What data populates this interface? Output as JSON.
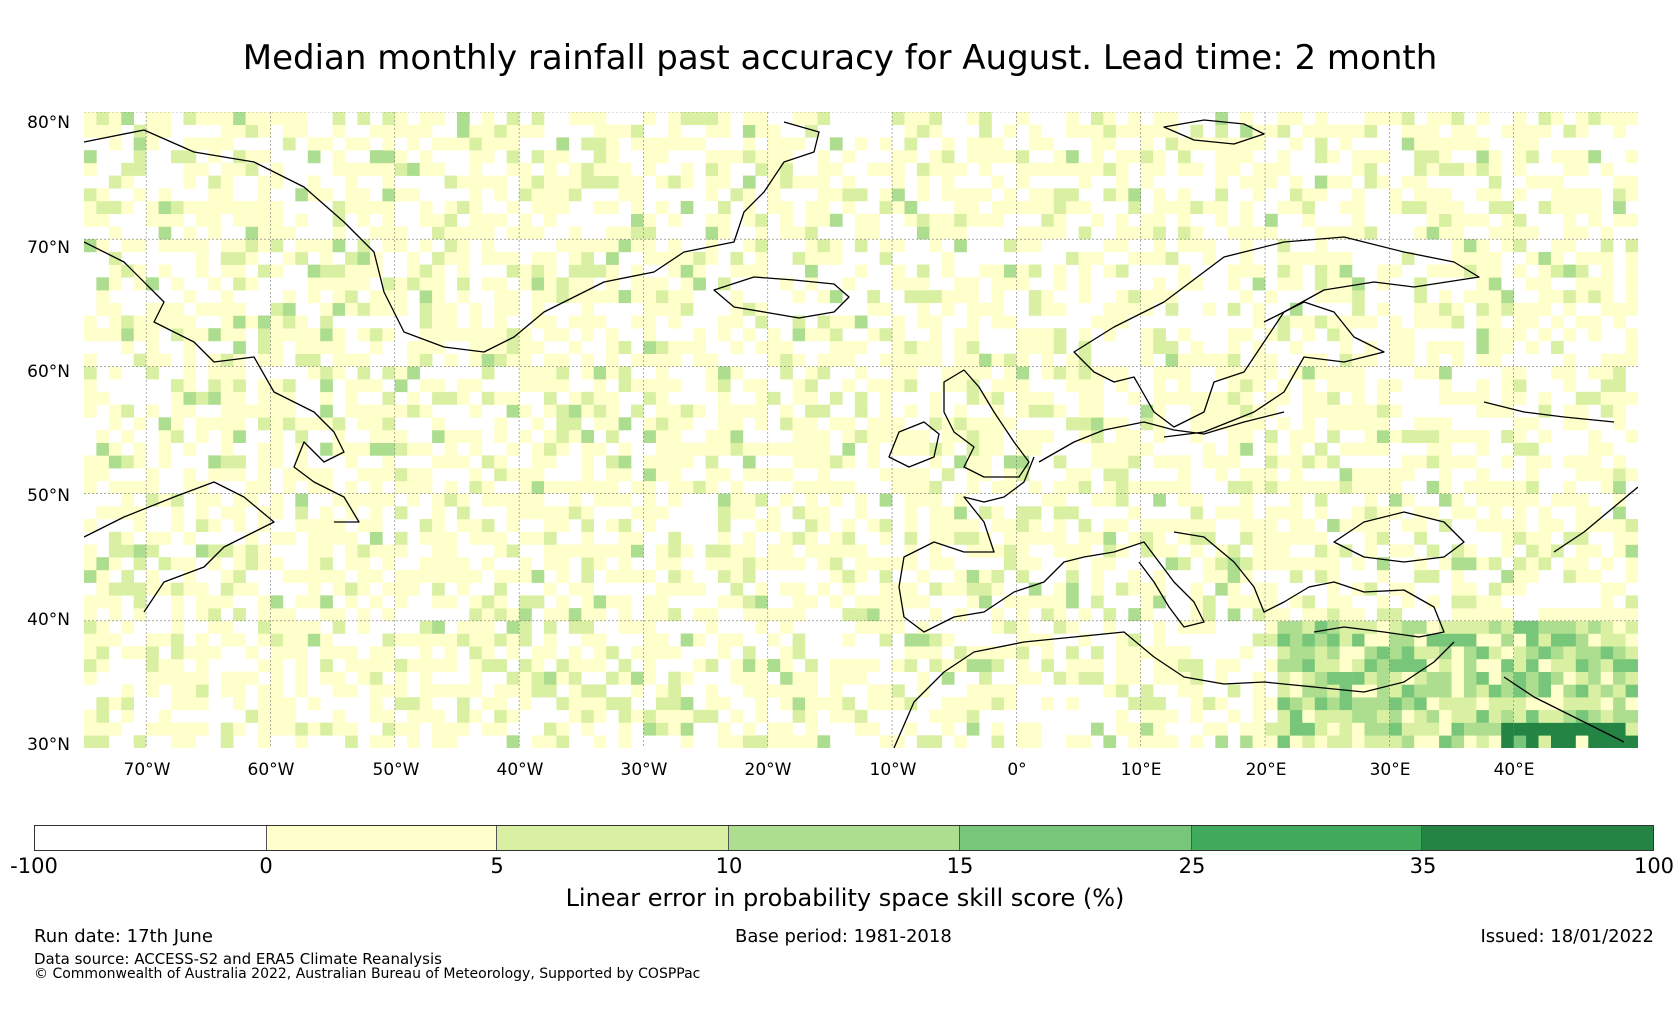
{
  "title": "Median monthly rainfall past accuracy for August. Lead time: 2 month",
  "map": {
    "region": "North Atlantic and Europe",
    "lat_range": [
      30,
      80
    ],
    "lon_range": [
      -75,
      50
    ],
    "lat_labels": [
      "80°N",
      "70°N",
      "60°N",
      "50°N",
      "40°N",
      "30°N"
    ],
    "lon_labels": [
      "70°W",
      "60°W",
      "50°W",
      "40°W",
      "30°W",
      "20°W",
      "10°W",
      "0°",
      "10°E",
      "20°E",
      "30°E",
      "40°E"
    ],
    "gridlines": true,
    "coastlines": true
  },
  "colorbar": {
    "title": "Linear error in probability space skill score (%)",
    "labels": [
      "-100",
      "0",
      "5",
      "10",
      "15",
      "25",
      "35",
      "100"
    ],
    "bins": [
      {
        "from": -100,
        "to": 0,
        "color": "#ffffff"
      },
      {
        "from": 0,
        "to": 5,
        "color": "#ffffcc"
      },
      {
        "from": 5,
        "to": 10,
        "color": "#d9f0a3"
      },
      {
        "from": 10,
        "to": 15,
        "color": "#addd8e"
      },
      {
        "from": 15,
        "to": 25,
        "color": "#78c679"
      },
      {
        "from": 25,
        "to": 35,
        "color": "#41ab5d"
      },
      {
        "from": 35,
        "to": 100,
        "color": "#238443"
      }
    ]
  },
  "footer": {
    "run_date": "Run date: 17th June",
    "base_period": "Base period: 1981-2018",
    "issued": "Issued: 18/01/2022",
    "data_source": "Data source: ACCESS-S2 and ERA5 Climate Reanalysis",
    "copyright": "© Commonwealth of Australia 2022, Australian Bureau of Meteorology, Supported by COSPPac"
  }
}
